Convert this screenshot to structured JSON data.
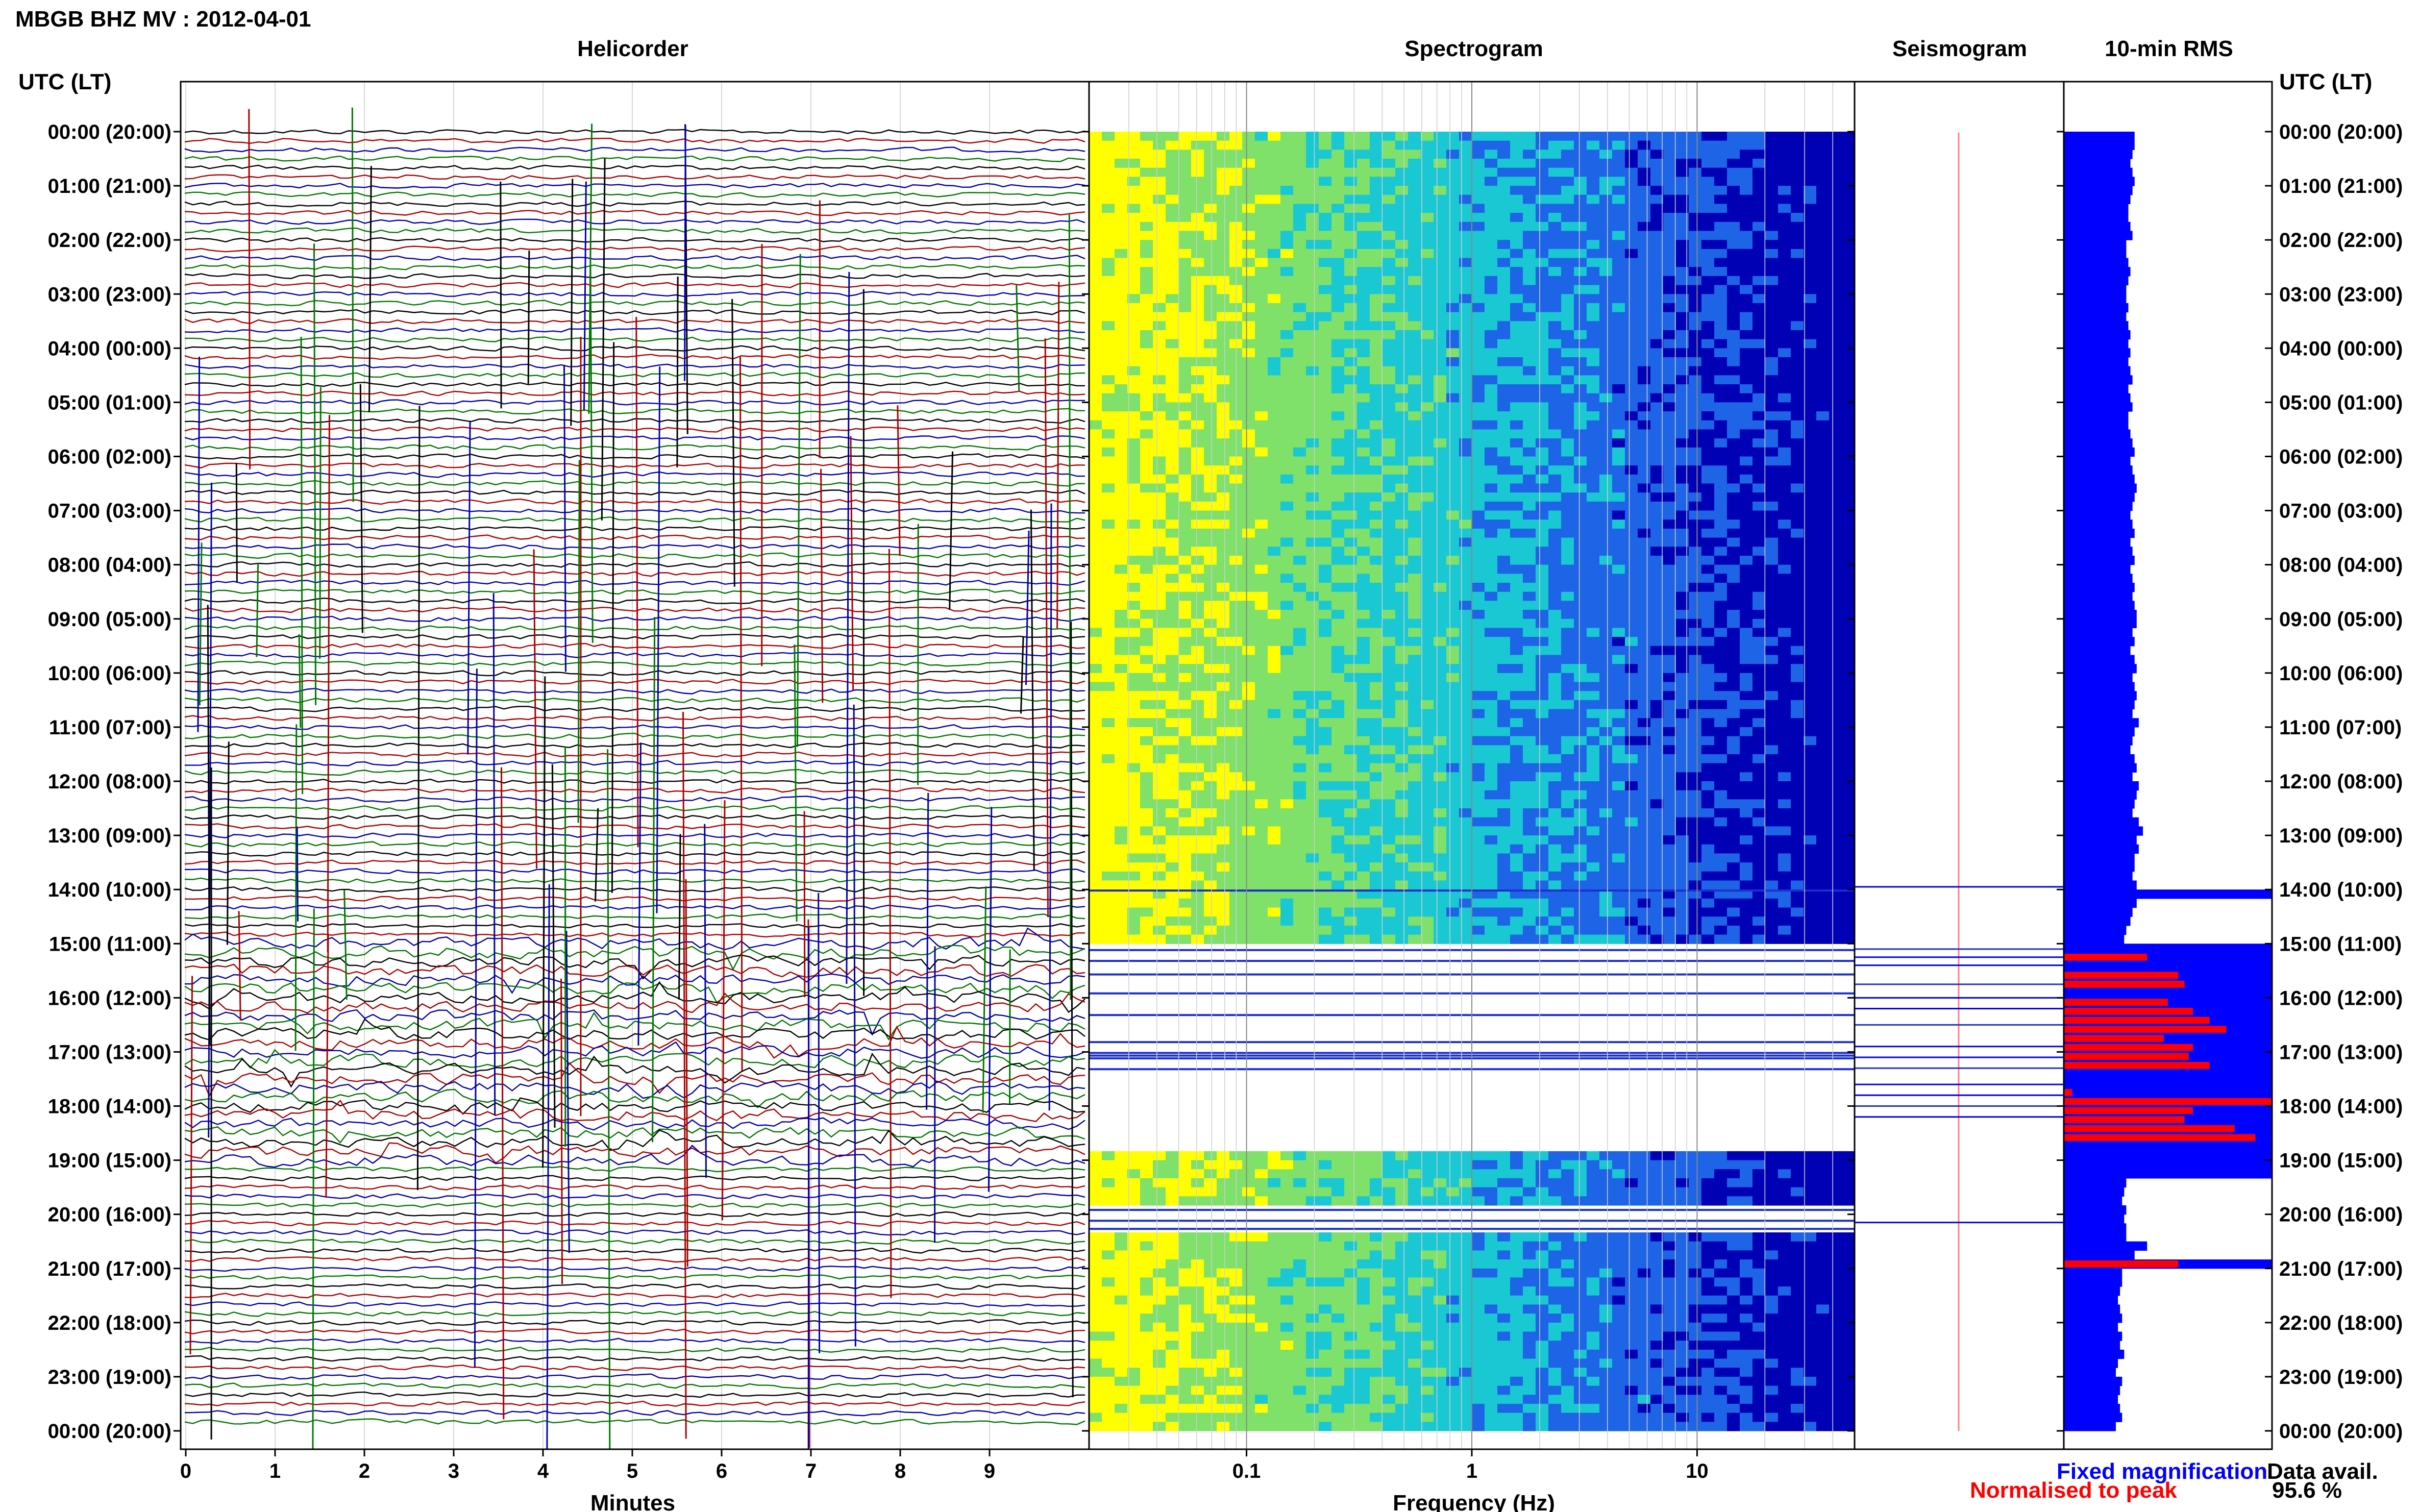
{
  "header": {
    "title": "MBGB BHZ MV : 2012-04-01",
    "left_axis_label": "UTC (LT)",
    "right_axis_label": "UTC (LT)"
  },
  "legend": {
    "fixed_label": "Fixed magnification",
    "normalised_label": "Normalised to peak",
    "fixed_color": "#0000ff",
    "normalised_color": "#ff0000",
    "availability_label": "Data avail.",
    "availability_value": "95.6 %"
  },
  "chart_data": [
    {
      "type": "line",
      "title": "Helicorder",
      "xlabel": "Minutes",
      "xlim": [
        0,
        10
      ],
      "xticks": [
        "0",
        "1",
        "2",
        "3",
        "4",
        "5",
        "6",
        "7",
        "8",
        "9"
      ],
      "row_interval_minutes": 10,
      "rows": 144,
      "trace_colors": [
        "#000000",
        "#aa0000",
        "#0000aa",
        "#007700"
      ],
      "yticks": [
        "00:00 (20:00)",
        "01:00 (21:00)",
        "02:00 (22:00)",
        "03:00 (23:00)",
        "04:00 (00:00)",
        "05:00 (01:00)",
        "06:00 (02:00)",
        "07:00 (03:00)",
        "08:00 (04:00)",
        "09:00 (05:00)",
        "10:00 (06:00)",
        "11:00 (07:00)",
        "12:00 (08:00)",
        "13:00 (09:00)",
        "14:00 (10:00)",
        "15:00 (11:00)",
        "16:00 (12:00)",
        "17:00 (13:00)",
        "18:00 (14:00)",
        "19:00 (15:00)",
        "20:00 (16:00)",
        "21:00 (17:00)",
        "22:00 (18:00)",
        "23:00 (19:00)",
        "00:00 (20:00)"
      ],
      "high_activity_hours": [
        15,
        19
      ]
    },
    {
      "type": "heatmap",
      "title": "Spectrogram",
      "xlabel": "Frequency (Hz)",
      "xscale": "log",
      "xlim": [
        0.02,
        50
      ],
      "xticks": [
        "0.1",
        "1",
        "10"
      ],
      "colormap": [
        "#ffff00",
        "#7fe06a",
        "#19c8d2",
        "#1e64e6",
        "#0000b4"
      ],
      "gap_hours": [
        [
          13.97,
          14.03
        ],
        [
          14.97,
          18.83
        ],
        [
          19.9,
          20.3
        ]
      ]
    },
    {
      "type": "line",
      "title": "Seismogram",
      "event_line_hours": [
        13.95,
        15.1,
        15.25,
        15.4,
        15.75,
        16.0,
        16.2,
        16.5,
        16.9,
        17.1,
        17.3,
        17.6,
        17.8,
        18.0,
        18.2,
        20.15
      ]
    },
    {
      "type": "bar",
      "title": "10-min RMS",
      "orientation": "horizontal",
      "fixed_series_name": "Fixed magnification",
      "normalised_series_name": "Normalised to peak",
      "fixed_values_pct": [
        34,
        34,
        33,
        32,
        33,
        34,
        33,
        32,
        31,
        31,
        32,
        33,
        30,
        30,
        31,
        32,
        31,
        30,
        30,
        31,
        30,
        31,
        32,
        31,
        32,
        31,
        32,
        33,
        31,
        32,
        33,
        31,
        31,
        32,
        33,
        34,
        32,
        33,
        34,
        35,
        34,
        33,
        32,
        33,
        34,
        32,
        33,
        34,
        32,
        33,
        34,
        33,
        34,
        35,
        35,
        33,
        34,
        32,
        34,
        35,
        33,
        34,
        35,
        34,
        33,
        36,
        34,
        33,
        32,
        34,
        35,
        33,
        36,
        35,
        34,
        33,
        36,
        38,
        35,
        36,
        34,
        34,
        33,
        35,
        100,
        35,
        33,
        32,
        30,
        29,
        100,
        100,
        100,
        100,
        100,
        100,
        100,
        100,
        100,
        100,
        100,
        100,
        100,
        100,
        100,
        100,
        100,
        100,
        100,
        100,
        100,
        100,
        100,
        100,
        100,
        100,
        30,
        29,
        28,
        30,
        29,
        30,
        30,
        40,
        34,
        100,
        28,
        28,
        27,
        26,
        27,
        28,
        26,
        28,
        27,
        29,
        26,
        25,
        28,
        27,
        26,
        27,
        28,
        25
      ],
      "normalised_values_pct": [
        {
          "row": 91,
          "value": 40
        },
        {
          "row": 93,
          "value": 55
        },
        {
          "row": 94,
          "value": 58
        },
        {
          "row": 96,
          "value": 50
        },
        {
          "row": 97,
          "value": 62
        },
        {
          "row": 98,
          "value": 70
        },
        {
          "row": 99,
          "value": 78
        },
        {
          "row": 100,
          "value": 48
        },
        {
          "row": 101,
          "value": 62
        },
        {
          "row": 102,
          "value": 60
        },
        {
          "row": 103,
          "value": 70
        },
        {
          "row": 106,
          "value": 4
        },
        {
          "row": 107,
          "value": 100
        },
        {
          "row": 108,
          "value": 62
        },
        {
          "row": 109,
          "value": 58
        },
        {
          "row": 110,
          "value": 82
        },
        {
          "row": 111,
          "value": 92
        },
        {
          "row": 125,
          "value": 55
        }
      ]
    }
  ]
}
